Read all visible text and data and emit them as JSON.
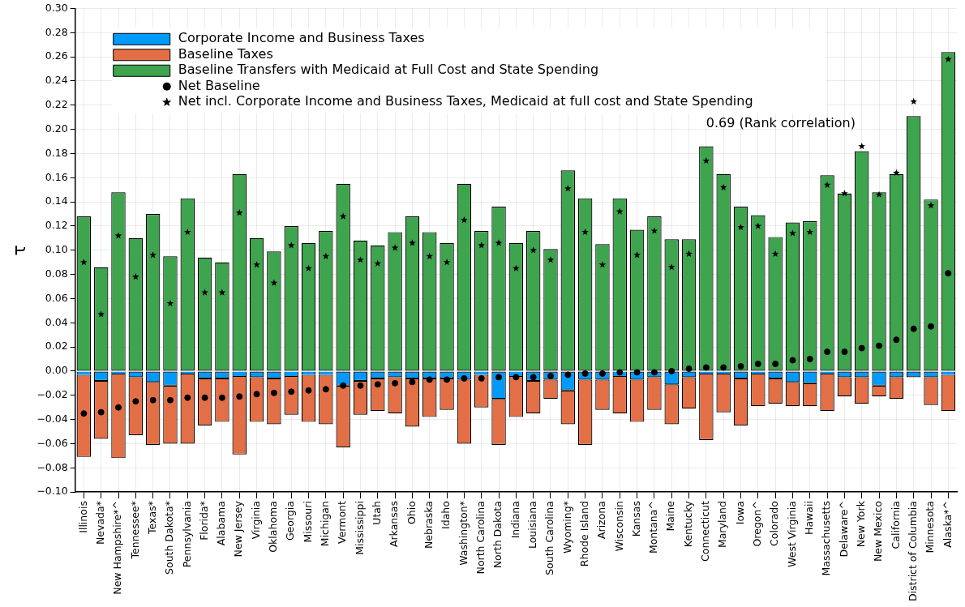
{
  "chart_data": {
    "type": "bar",
    "stacked": true,
    "ylabel": "τ",
    "grid": true,
    "legend": "top left",
    "categories": [
      "Illinois",
      "Nevada*",
      "New Hampshire*^",
      "Tennessee*",
      "Texas*",
      "South Dakota*",
      "Pennsylvania",
      "Florida*",
      "Alabama",
      "New Jersey",
      "Virginia",
      "Oklahoma",
      "Georgia",
      "Missouri",
      "Michigan",
      "Vermont",
      "Mississippi",
      "Utah",
      "Arkansas",
      "Ohio",
      "Nebraska",
      "Idaho",
      "Washington*",
      "North Carolina",
      "North Dakota",
      "Indiana",
      "Louisiana",
      "South Carolina",
      "Wyoming*",
      "Rhode Island",
      "Arizona",
      "Wisconsin",
      "Kansas",
      "Montana^",
      "Maine",
      "Kentucky",
      "Connecticut",
      "Maryland",
      "Iowa",
      "Oregon^",
      "Colorado",
      "West Virginia",
      "Hawaii",
      "Massachusetts",
      "Delaware^",
      "New York",
      "New Mexico",
      "California",
      "District of Columbia",
      "Minnesota",
      "Alaska*^"
    ],
    "ylim": [
      -0.1,
      0.3
    ],
    "yticks": [
      {
        "value": -0.1,
        "label": "−0.10"
      },
      {
        "value": -0.08,
        "label": "−0.08"
      },
      {
        "value": -0.06,
        "label": "−0.06"
      },
      {
        "value": -0.04,
        "label": "−0.04"
      },
      {
        "value": -0.02,
        "label": "−0.02"
      },
      {
        "value": 0,
        "label": "0.00"
      },
      {
        "value": 0.02,
        "label": "0.02"
      },
      {
        "value": 0.04,
        "label": "0.04"
      },
      {
        "value": 0.06,
        "label": "0.06"
      },
      {
        "value": 0.08,
        "label": "0.08"
      },
      {
        "value": 0.1,
        "label": "0.10"
      },
      {
        "value": 0.12,
        "label": "0.12"
      },
      {
        "value": 0.14,
        "label": "0.14"
      },
      {
        "value": 0.16,
        "label": "0.16"
      },
      {
        "value": 0.18,
        "label": "0.18"
      },
      {
        "value": 0.2,
        "label": "0.20"
      },
      {
        "value": 0.22,
        "label": "0.22"
      },
      {
        "value": 0.24,
        "label": "0.24"
      },
      {
        "value": 0.26,
        "label": "0.26"
      },
      {
        "value": 0.28,
        "label": "0.28"
      },
      {
        "value": 0.3,
        "label": "0.30"
      }
    ],
    "annotations": [
      "0.69 (Rank correlation)"
    ],
    "series": [
      {
        "name": "Corporate Income and Business Taxes",
        "color": "#009afa",
        "values": [
          -0.003,
          -0.008,
          -0.002,
          -0.005,
          -0.009,
          -0.012,
          -0.002,
          -0.006,
          -0.006,
          -0.004,
          -0.005,
          -0.006,
          -0.004,
          -0.003,
          -0.003,
          -0.012,
          -0.008,
          -0.006,
          -0.005,
          -0.006,
          -0.006,
          -0.006,
          -0.007,
          -0.003,
          -0.023,
          -0.004,
          -0.008,
          -0.007,
          -0.016,
          -0.007,
          -0.007,
          -0.004,
          -0.007,
          -0.005,
          -0.011,
          -0.005,
          -0.002,
          -0.002,
          -0.006,
          -0.002,
          -0.006,
          -0.009,
          -0.01,
          -0.002,
          -0.005,
          -0.005,
          -0.012,
          -0.005,
          -0.005,
          -0.005,
          -0.003
        ]
      },
      {
        "name": "Baseline Taxes",
        "color": "#e36f47",
        "values": [
          -0.068,
          -0.048,
          -0.07,
          -0.048,
          -0.052,
          -0.048,
          -0.058,
          -0.039,
          -0.036,
          -0.065,
          -0.037,
          -0.038,
          -0.032,
          -0.039,
          -0.041,
          -0.051,
          -0.028,
          -0.027,
          -0.03,
          -0.04,
          -0.032,
          -0.026,
          -0.053,
          -0.027,
          -0.038,
          -0.034,
          -0.027,
          -0.016,
          -0.028,
          -0.054,
          -0.025,
          -0.031,
          -0.035,
          -0.027,
          -0.033,
          -0.026,
          -0.055,
          -0.032,
          -0.039,
          -0.027,
          -0.021,
          -0.02,
          -0.019,
          -0.031,
          -0.016,
          -0.022,
          -0.009,
          -0.018,
          0,
          -0.023,
          -0.03
        ]
      },
      {
        "name": "Baseline Transfers with Medicaid at Full Cost and State Spending",
        "color": "#3ea44e",
        "values": [
          0.128,
          0.086,
          0.148,
          0.11,
          0.13,
          0.095,
          0.143,
          0.094,
          0.09,
          0.163,
          0.11,
          0.099,
          0.12,
          0.106,
          0.116,
          0.155,
          0.108,
          0.104,
          0.115,
          0.128,
          0.115,
          0.106,
          0.155,
          0.116,
          0.136,
          0.106,
          0.116,
          0.101,
          0.166,
          0.143,
          0.105,
          0.143,
          0.117,
          0.128,
          0.109,
          0.109,
          0.186,
          0.163,
          0.136,
          0.129,
          0.111,
          0.123,
          0.124,
          0.162,
          0.147,
          0.182,
          0.148,
          0.163,
          0.211,
          0.142,
          0.264
        ]
      },
      {
        "name": "Net Baseline",
        "type": "scatter",
        "marker": "circle",
        "color": "#000000",
        "values": [
          -0.035,
          -0.034,
          -0.03,
          -0.025,
          -0.024,
          -0.024,
          -0.022,
          -0.022,
          -0.022,
          -0.021,
          -0.019,
          -0.018,
          -0.017,
          -0.016,
          -0.015,
          -0.012,
          -0.012,
          -0.011,
          -0.01,
          -0.009,
          -0.007,
          -0.007,
          -0.006,
          -0.006,
          -0.005,
          -0.005,
          -0.005,
          -0.004,
          -0.003,
          -0.002,
          -0.002,
          -0.001,
          -0.001,
          -0.001,
          0.0,
          0.002,
          0.003,
          0.003,
          0.004,
          0.006,
          0.006,
          0.009,
          0.01,
          0.016,
          0.016,
          0.019,
          0.021,
          0.026,
          0.035,
          0.037,
          0.081
        ]
      },
      {
        "name": "Net incl. Corporate Income and Business Taxes, Medicaid at full cost and State Spending",
        "type": "scatter",
        "marker": "star",
        "color": "#000000",
        "values": [
          0.09,
          0.047,
          0.112,
          0.078,
          0.096,
          0.056,
          0.115,
          0.065,
          0.065,
          0.131,
          0.088,
          0.073,
          0.104,
          0.085,
          0.095,
          0.128,
          0.092,
          0.089,
          0.102,
          0.106,
          0.095,
          0.09,
          0.125,
          0.104,
          0.106,
          0.085,
          0.1,
          0.092,
          0.151,
          0.115,
          0.088,
          0.132,
          0.096,
          0.116,
          0.086,
          0.097,
          0.174,
          0.152,
          0.119,
          0.12,
          0.097,
          0.114,
          0.115,
          0.154,
          0.147,
          0.186,
          0.146,
          0.164,
          0.223,
          0.137,
          0.258
        ]
      }
    ]
  }
}
